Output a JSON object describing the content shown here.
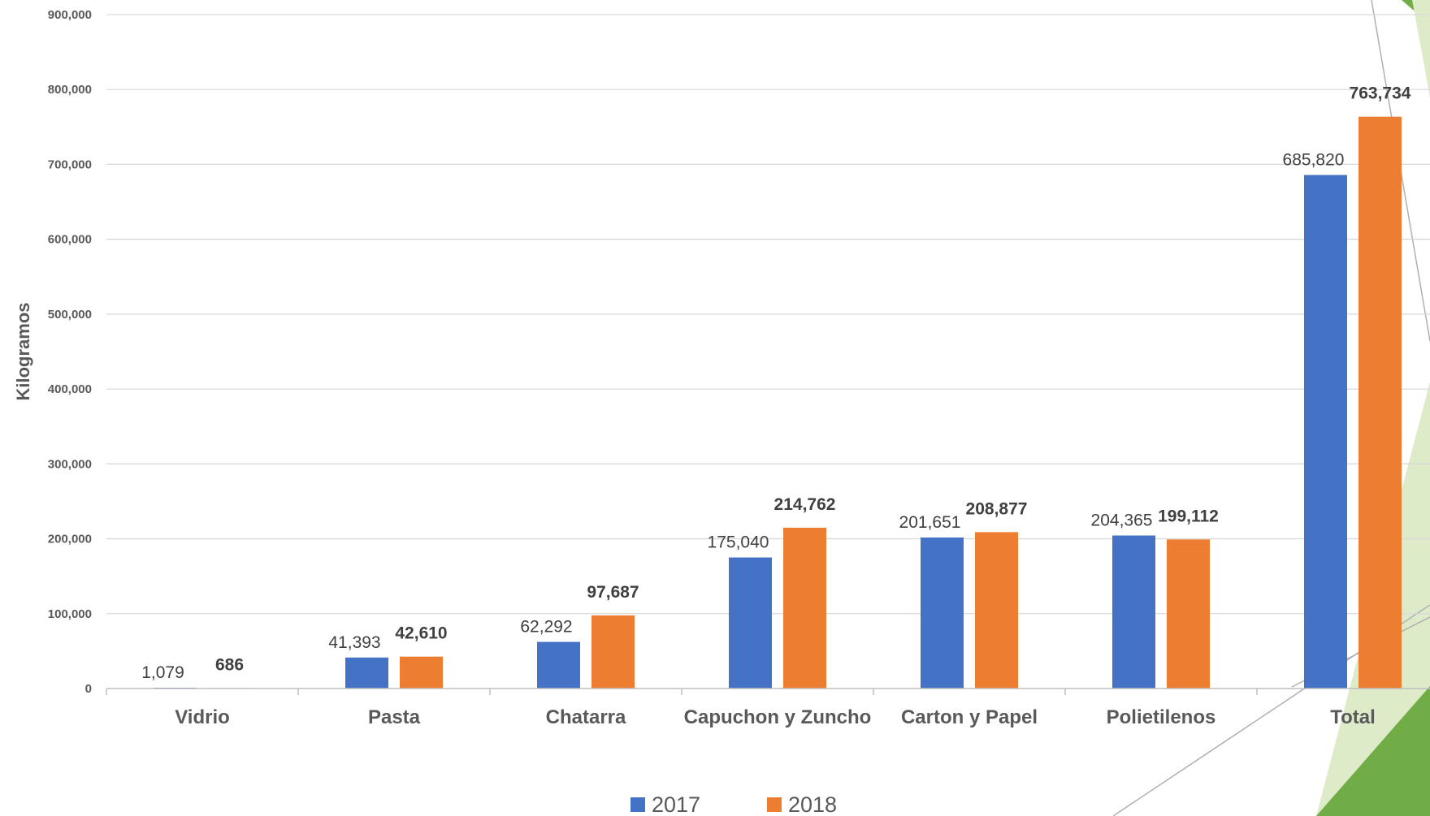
{
  "chart_data": {
    "type": "bar",
    "ylabel": "Kilogramos",
    "ylim": [
      0,
      900000
    ],
    "y_ticks": [
      "0",
      "100,000",
      "200,000",
      "300,000",
      "400,000",
      "500,000",
      "600,000",
      "700,000",
      "800,000",
      "900,000"
    ],
    "y_tick_values": [
      0,
      100000,
      200000,
      300000,
      400000,
      500000,
      600000,
      700000,
      800000,
      900000
    ],
    "categories": [
      "Vidrio",
      "Pasta",
      "Chatarra",
      "Capuchon y Zuncho",
      "Carton y Papel",
      "Polietilenos",
      "Total"
    ],
    "series": [
      {
        "name": "2017",
        "color": "#4472C4",
        "values": [
          1079,
          41393,
          62292,
          175040,
          201651,
          204365,
          685820
        ],
        "labels": [
          "1,079",
          "41,393",
          "62,292",
          "175,040",
          "201,651",
          "204,365",
          "685,820"
        ]
      },
      {
        "name": "2018",
        "color": "#ED7D31",
        "values": [
          686,
          42610,
          97687,
          214762,
          208877,
          199112,
          763734
        ],
        "labels": [
          "686",
          "42,610",
          "97,687",
          "214,762",
          "208,877",
          "199,112",
          "763,734"
        ]
      }
    ],
    "grid": true,
    "legend_position": "bottom"
  },
  "decor": {
    "green_dark": "#70AD47",
    "green_light": "#DDEBC9"
  }
}
